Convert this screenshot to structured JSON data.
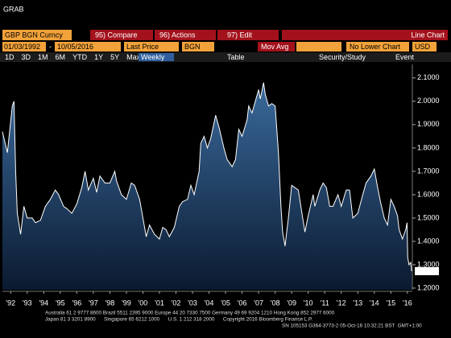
{
  "window": {
    "title": "GRAB"
  },
  "toolbar": {
    "security": "GBP BGN Curncy",
    "compare": "95) Compare",
    "actions": "96) Actions",
    "edit": "97) Edit",
    "chart_kind": "Line Chart",
    "start_date": "01/03/1992",
    "dash": "-",
    "end_date": "10/05/2016",
    "field": "Last Price",
    "source": "BGN",
    "study": "Mov Avg",
    "lower": "No Lower Chart",
    "currency": "USD",
    "periods": [
      "1D",
      "3D",
      "1M",
      "6M",
      "YTD",
      "1Y",
      "5Y",
      "Max"
    ],
    "frequency": "Weekly",
    "table": "Table",
    "security_study": "Security/Study",
    "event": "Event"
  },
  "chart_data": {
    "type": "line",
    "color": "#ffffff",
    "x": [
      1992.0,
      1992.3,
      1992.6,
      1992.7,
      1992.8,
      1992.9,
      1993.1,
      1993.3,
      1993.5,
      1993.8,
      1994.0,
      1994.3,
      1994.6,
      1994.9,
      1995.2,
      1995.4,
      1995.7,
      1995.9,
      1996.2,
      1996.5,
      1996.8,
      1997.0,
      1997.2,
      1997.5,
      1997.7,
      1997.9,
      1998.2,
      1998.5,
      1998.8,
      1998.9,
      1999.2,
      1999.5,
      1999.8,
      2000.0,
      2000.3,
      2000.5,
      2000.7,
      2000.9,
      2001.2,
      2001.5,
      2001.7,
      2001.9,
      2002.1,
      2002.4,
      2002.7,
      2002.9,
      2003.2,
      2003.4,
      2003.6,
      2003.9,
      2004.0,
      2004.2,
      2004.4,
      2004.6,
      2004.9,
      2005.1,
      2005.4,
      2005.6,
      2005.9,
      2006.1,
      2006.3,
      2006.5,
      2006.8,
      2006.9,
      2007.1,
      2007.3,
      2007.5,
      2007.6,
      2007.8,
      2007.9,
      2008.1,
      2008.3,
      2008.5,
      2008.7,
      2008.85,
      2008.95,
      2009.1,
      2009.3,
      2009.5,
      2009.7,
      2009.9,
      2010.1,
      2010.3,
      2010.5,
      2010.8,
      2010.9,
      2011.2,
      2011.4,
      2011.6,
      2011.8,
      2012.0,
      2012.3,
      2012.5,
      2012.8,
      2013.0,
      2013.2,
      2013.5,
      2013.8,
      2014.0,
      2014.3,
      2014.5,
      2014.7,
      2014.9,
      2015.1,
      2015.3,
      2015.5,
      2015.7,
      2015.9,
      2016.0,
      2016.2,
      2016.4,
      2016.48,
      2016.52,
      2016.6,
      2016.7,
      2016.76
    ],
    "values": [
      1.87,
      1.78,
      1.98,
      2.0,
      1.7,
      1.52,
      1.43,
      1.55,
      1.5,
      1.5,
      1.48,
      1.49,
      1.55,
      1.58,
      1.62,
      1.6,
      1.55,
      1.54,
      1.52,
      1.56,
      1.63,
      1.7,
      1.62,
      1.67,
      1.61,
      1.68,
      1.65,
      1.65,
      1.7,
      1.66,
      1.6,
      1.58,
      1.65,
      1.64,
      1.58,
      1.5,
      1.42,
      1.47,
      1.43,
      1.41,
      1.46,
      1.45,
      1.42,
      1.46,
      1.55,
      1.57,
      1.58,
      1.64,
      1.6,
      1.7,
      1.82,
      1.85,
      1.8,
      1.84,
      1.94,
      1.89,
      1.8,
      1.75,
      1.72,
      1.75,
      1.88,
      1.85,
      1.92,
      1.98,
      1.95,
      2.0,
      2.05,
      2.01,
      2.08,
      2.03,
      1.98,
      1.99,
      1.98,
      1.78,
      1.55,
      1.44,
      1.38,
      1.5,
      1.64,
      1.63,
      1.62,
      1.53,
      1.44,
      1.51,
      1.6,
      1.55,
      1.62,
      1.65,
      1.63,
      1.55,
      1.55,
      1.6,
      1.55,
      1.62,
      1.62,
      1.5,
      1.52,
      1.6,
      1.65,
      1.68,
      1.71,
      1.63,
      1.56,
      1.5,
      1.47,
      1.58,
      1.55,
      1.51,
      1.45,
      1.41,
      1.45,
      1.48,
      1.33,
      1.3,
      1.31,
      1.2725
    ],
    "last_value": 1.2725,
    "xlim": [
      1992.0,
      2016.8
    ],
    "xticks": [
      {
        "value": 1992.5,
        "label": "'92"
      },
      {
        "value": 1993.5,
        "label": "'93"
      },
      {
        "value": 1994.5,
        "label": "'94"
      },
      {
        "value": 1995.5,
        "label": "'95"
      },
      {
        "value": 1996.5,
        "label": "'96"
      },
      {
        "value": 1997.5,
        "label": "'97"
      },
      {
        "value": 1998.5,
        "label": "'98"
      },
      {
        "value": 1999.5,
        "label": "'99"
      },
      {
        "value": 2000.5,
        "label": "'00"
      },
      {
        "value": 2001.5,
        "label": "'01"
      },
      {
        "value": 2002.5,
        "label": "'02"
      },
      {
        "value": 2003.5,
        "label": "'03"
      },
      {
        "value": 2004.5,
        "label": "'04"
      },
      {
        "value": 2005.5,
        "label": "'05"
      },
      {
        "value": 2006.5,
        "label": "'06"
      },
      {
        "value": 2007.5,
        "label": "'07"
      },
      {
        "value": 2008.5,
        "label": "'08"
      },
      {
        "value": 2009.5,
        "label": "'09"
      },
      {
        "value": 2010.5,
        "label": "'10"
      },
      {
        "value": 2011.5,
        "label": "'11"
      },
      {
        "value": 2012.5,
        "label": "'12"
      },
      {
        "value": 2013.5,
        "label": "'13"
      },
      {
        "value": 2014.5,
        "label": "'14"
      },
      {
        "value": 2015.5,
        "label": "'15"
      },
      {
        "value": 2016.5,
        "label": "'16"
      }
    ],
    "ylim": [
      1.193,
      2.158
    ],
    "yticks": [
      {
        "value": 1.2,
        "label": "1.2000"
      },
      {
        "value": 1.3,
        "label": "1.3000"
      },
      {
        "value": 1.4,
        "label": "1.4000"
      },
      {
        "value": 1.5,
        "label": "1.5000"
      },
      {
        "value": 1.6,
        "label": "1.6000"
      },
      {
        "value": 1.7,
        "label": "1.7000"
      },
      {
        "value": 1.8,
        "label": "1.8000"
      },
      {
        "value": 1.9,
        "label": "1.9000"
      },
      {
        "value": 2.0,
        "label": "2.0000"
      },
      {
        "value": 2.1,
        "label": "2.1000"
      }
    ]
  },
  "footer": {
    "line1": "Australia 61 2 9777 8600 Brazil 5511 2395 9000 Europe 44 20 7330 7500 Germany 49 69 9204 1210 Hong Kong 852 2977 6000",
    "line2": "Japan 81 3 3201 8900      Singapore 65 6212 1000      U.S. 1 212 318 2000      Copyright 2016 Bloomberg Finance L.P.",
    "line3": "SN 105153 G364-3773-2 05-Oct-16 10:32:21 BST  GMT+1:00"
  }
}
